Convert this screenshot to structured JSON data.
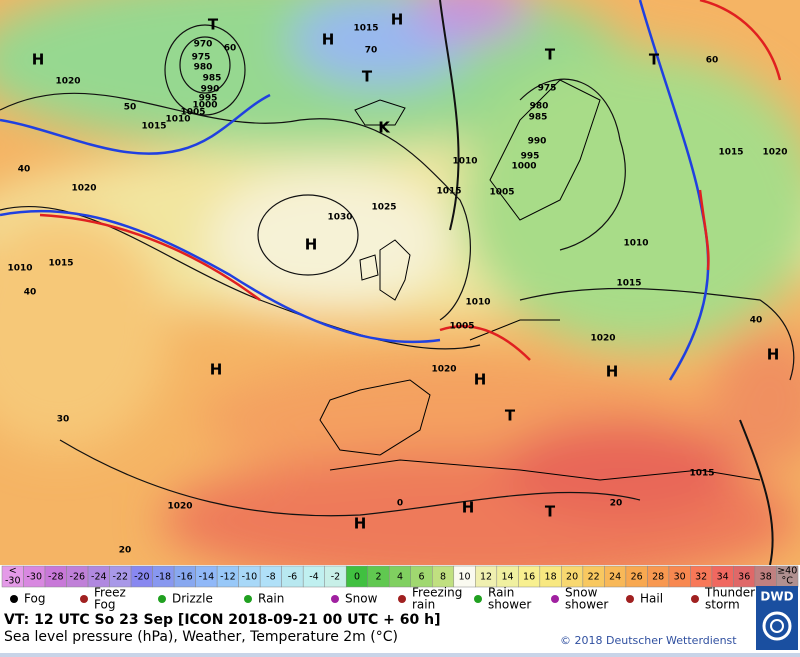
{
  "map": {
    "pressure_labels": [
      "970",
      "975",
      "980",
      "985",
      "990",
      "995",
      "1000",
      "1005",
      "1010",
      "1015",
      "50",
      "60",
      "1020",
      "1015",
      "70",
      "975",
      "980",
      "985",
      "990",
      "995",
      "1000",
      "1005",
      "1010",
      "1015",
      "1025",
      "1030",
      "1020",
      "1010",
      "1015",
      "40",
      "40",
      "1010",
      "1005",
      "1020",
      "1020",
      "1015",
      "1010",
      "1015",
      "1020",
      "60",
      "40",
      "1015",
      "1020",
      "30",
      "20",
      "0",
      "20"
    ],
    "centers": [
      "H",
      "T",
      "H",
      "H",
      "T",
      "K",
      "T",
      "H",
      "H",
      "H",
      "H",
      "H",
      "T",
      "H",
      "H",
      "T",
      "T"
    ]
  },
  "color_scale": {
    "labels": [
      [
        "<",
        "-30"
      ],
      [
        "-30"
      ],
      [
        "-28"
      ],
      [
        "-26"
      ],
      [
        "-24"
      ],
      [
        "-22"
      ],
      [
        "-20"
      ],
      [
        "-18"
      ],
      [
        "-16"
      ],
      [
        "-14"
      ],
      [
        "-12"
      ],
      [
        "-10"
      ],
      [
        "-8"
      ],
      [
        "-6"
      ],
      [
        "-4"
      ],
      [
        "-2"
      ],
      [
        "0"
      ],
      [
        "2"
      ],
      [
        "4"
      ],
      [
        "6"
      ],
      [
        "8"
      ],
      [
        "10"
      ],
      [
        "12"
      ],
      [
        "14"
      ],
      [
        "16"
      ],
      [
        "18"
      ],
      [
        "20"
      ],
      [
        "22"
      ],
      [
        "24"
      ],
      [
        "26"
      ],
      [
        "28"
      ],
      [
        "30"
      ],
      [
        "32"
      ],
      [
        "34"
      ],
      [
        "36"
      ],
      [
        "38"
      ],
      [
        "≥40",
        "°C"
      ]
    ],
    "colors": [
      "#e49ae8",
      "#d888e0",
      "#c878d8",
      "#c080d8",
      "#b088e0",
      "#a898e8",
      "#8888f0",
      "#8898f0",
      "#88a8f0",
      "#90b8f8",
      "#98c8f8",
      "#a8d8f8",
      "#b0e0f8",
      "#b8e8f0",
      "#c0f0f0",
      "#c8f0e8",
      "#40c040",
      "#60c850",
      "#80d060",
      "#a0d870",
      "#c0e080",
      "#fafaf0",
      "#f0f0b0",
      "#f0f0a0",
      "#f8f090",
      "#f8e880",
      "#f8d870",
      "#f8c860",
      "#f8b858",
      "#f8a850",
      "#f89850",
      "#f88850",
      "#f87858",
      "#f06860",
      "#e06868",
      "#c08080",
      "#b09090"
    ]
  },
  "legend": {
    "items": [
      [
        "Fog"
      ],
      [
        "Freez",
        "Fog"
      ],
      [
        "Drizzle"
      ],
      [
        "Rain"
      ],
      [
        "Snow"
      ],
      [
        "Freezing",
        "rain"
      ],
      [
        "Rain",
        "shower"
      ],
      [
        "Snow",
        "shower"
      ],
      [
        "Hail"
      ],
      [
        "Thunder",
        "storm"
      ]
    ]
  },
  "footer": {
    "valid_time": "VT: 12 UTC So  23 Sep [ICON 2018-09-21  00 UTC + 60 h]",
    "description": "Sea level pressure (hPa), Weather, Temperature 2m (°C)",
    "copyright": "© 2018 Deutscher Wetterdienst",
    "logo": "DWD"
  }
}
